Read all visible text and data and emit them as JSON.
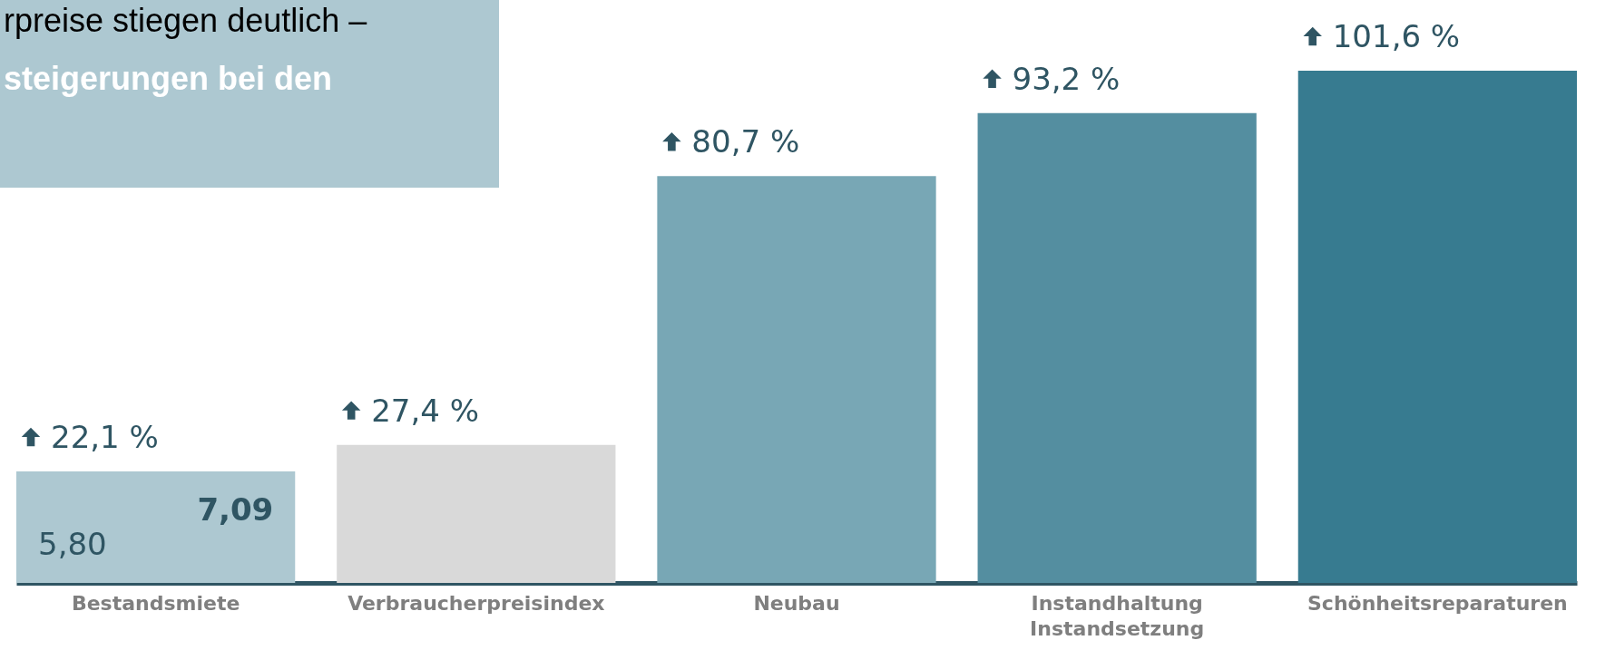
{
  "chart_data": {
    "type": "bar",
    "title": "rpreise stiegen deutlich –",
    "subtitle": "steigerungen bei den",
    "categories": [
      "Bestandsmiete",
      "Verbraucherpreisindex",
      "Neubau",
      "Instandhaltung\nInstandsetzung",
      "Schönheitsreparaturen"
    ],
    "values": [
      22.1,
      27.4,
      80.7,
      93.2,
      101.6
    ],
    "value_labels": [
      "22,1 %",
      "27,4 %",
      "80,7 %",
      "93,2 %",
      "101,6 %"
    ],
    "colors": [
      "#adc8d1",
      "#d9d9d9",
      "#78a7b5",
      "#548ea0",
      "#377b90"
    ],
    "annotations": [
      "5,80",
      "7,09"
    ]
  }
}
